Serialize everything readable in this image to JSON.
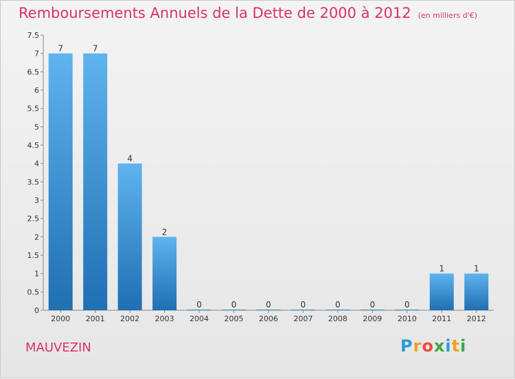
{
  "title": "Remboursements Annuels de la Dette de 2000 à 2012",
  "subtitle": "(en milliers d'€)",
  "commune": "MAUVEZIN",
  "logo": {
    "letters": [
      {
        "char": "P",
        "color": "#2b9bd8"
      },
      {
        "char": "r",
        "color": "#f0a020"
      },
      {
        "char": "o",
        "color": "#e84c3d"
      },
      {
        "char": "x",
        "color": "#3aa845"
      },
      {
        "char": "i",
        "color": "#2b9bd8"
      },
      {
        "char": "t",
        "color": "#f0a020"
      },
      {
        "char": "i",
        "color": "#3aa845"
      }
    ]
  },
  "colors": {
    "title": "#d6336c",
    "bar_top": "#5fb3ee",
    "bar_bottom": "#1f6fb3"
  },
  "chart_data": {
    "type": "bar",
    "title": "Remboursements Annuels de la Dette de 2000 à 2012",
    "subtitle": "(en milliers d'€)",
    "categories": [
      "2000",
      "2001",
      "2002",
      "2003",
      "2004",
      "2005",
      "2006",
      "2007",
      "2008",
      "2009",
      "2010",
      "2011",
      "2012"
    ],
    "values": [
      7,
      7,
      4,
      2,
      0,
      0,
      0,
      0,
      0,
      0,
      0,
      1,
      1
    ],
    "data_labels": [
      "7",
      "7",
      "4",
      "2",
      "0",
      "0",
      "0",
      "0",
      "0",
      "0",
      "0",
      "1",
      "1"
    ],
    "yticks": [
      "0",
      "0.5",
      "1",
      "1.5",
      "2",
      "2.5",
      "3",
      "3.5",
      "4",
      "4.5",
      "5",
      "5.5",
      "6",
      "6.5",
      "7",
      "7.5"
    ],
    "ylim": [
      0,
      7.5
    ],
    "grid": false,
    "legend": "none"
  }
}
